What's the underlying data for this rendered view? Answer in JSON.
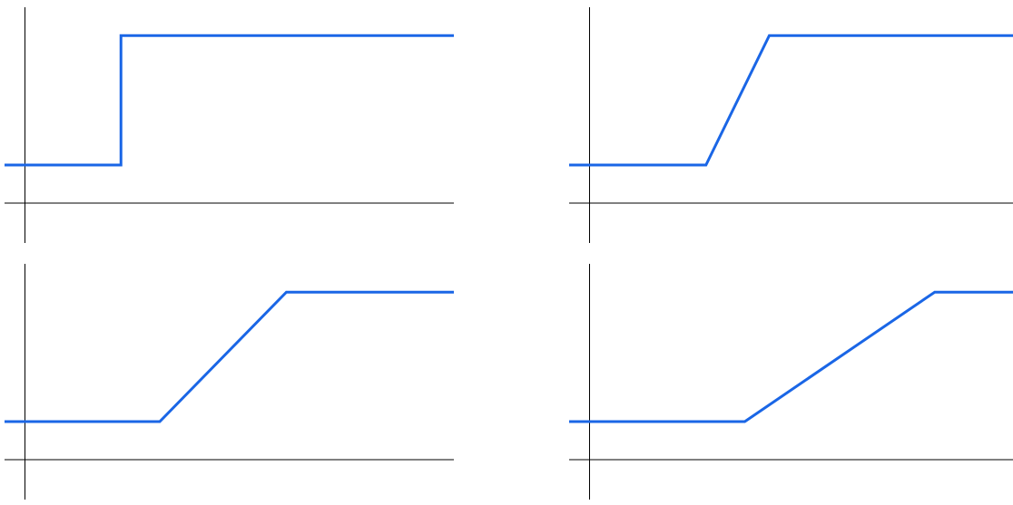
{
  "chart_data": [
    {
      "type": "line",
      "title": "",
      "xlabel": "",
      "ylabel": "",
      "grid": false,
      "xlim": [
        -0.5,
        10.5
      ],
      "ylim": [
        -1,
        5
      ],
      "series": [
        {
          "x": [
            -0.5,
            2.35,
            2.35,
            10.5
          ],
          "y": [
            1,
            1,
            4.4,
            4.4
          ],
          "color": "#1a66e6"
        }
      ],
      "annotations": [
        {
          "kind": "dashed-vertical-line",
          "x": 2.35,
          "y": [
            1,
            4.4
          ],
          "color": "#333333"
        }
      ]
    },
    {
      "type": "line",
      "title": "",
      "xlabel": "",
      "ylabel": "",
      "grid": false,
      "xlim": [
        -0.5,
        10.5
      ],
      "ylim": [
        -1,
        5
      ],
      "series": [
        {
          "x": [
            -0.5,
            2.85,
            4.4,
            10.5
          ],
          "y": [
            1,
            1,
            4.4,
            4.4
          ],
          "color": "#1a66e6"
        }
      ]
    },
    {
      "type": "line",
      "title": "",
      "xlabel": "",
      "ylabel": "",
      "grid": false,
      "xlim": [
        -0.5,
        10.5
      ],
      "ylim": [
        -1,
        5
      ],
      "series": [
        {
          "x": [
            -0.5,
            3.3,
            6.4,
            10.5
          ],
          "y": [
            1,
            1,
            4.4,
            4.4
          ],
          "color": "#1a66e6"
        }
      ]
    },
    {
      "type": "line",
      "title": "",
      "xlabel": "",
      "ylabel": "",
      "grid": false,
      "xlim": [
        -0.5,
        10.5
      ],
      "ylim": [
        -1,
        5
      ],
      "series": [
        {
          "x": [
            -0.5,
            3.8,
            8.45,
            10.5
          ],
          "y": [
            1,
            1,
            4.4,
            4.4
          ],
          "color": "#1a66e6"
        }
      ]
    }
  ]
}
